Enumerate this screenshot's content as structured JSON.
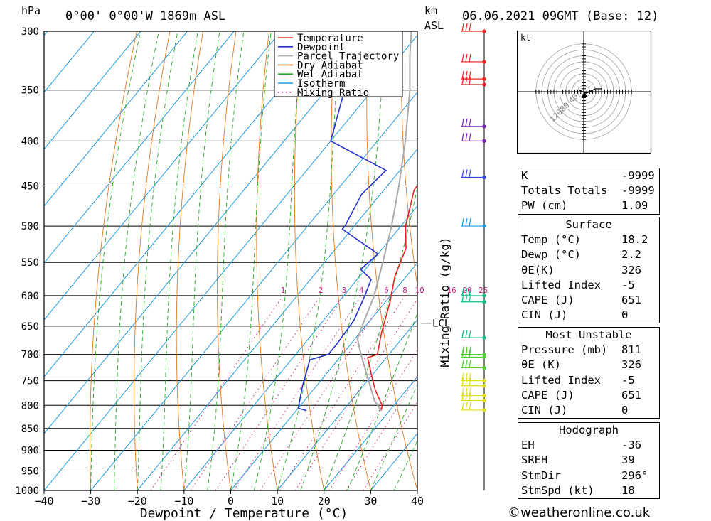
{
  "header": {
    "pressure_unit": "hPa",
    "location": "0°00' 0°00'W 1869m ASL",
    "km_label": "km",
    "asl_label": "ASL",
    "datetime": "06.06.2021 09GMT (Base: 12)"
  },
  "chart_data": {
    "type": "line",
    "subtype": "skew-T log-P diagram",
    "xlabel": "Dewpoint / Temperature (°C)",
    "ylabel": "hPa",
    "xlim": [
      -40,
      40
    ],
    "ylim": [
      1000,
      300
    ],
    "y_scale": "log",
    "x_ticks": [
      "−40",
      "−30",
      "−20",
      "−10",
      "0",
      "10",
      "20",
      "30",
      "40"
    ],
    "pressure_levels": [
      300,
      350,
      400,
      450,
      500,
      550,
      600,
      650,
      700,
      750,
      800,
      850,
      900,
      950,
      1000
    ],
    "mixing_ratio_axis_label": "Mixing Ratio (g/kg)",
    "mixing_ratio_labels": [
      "1",
      "2",
      "3",
      "4",
      "6",
      "8",
      "10",
      "16",
      "20",
      "25"
    ],
    "lcl_label": "LCL",
    "lcl_pressure": 645,
    "legend": [
      "Temperature",
      "Dewpoint",
      "Parcel Trajectory",
      "Dry Adiabat",
      "Wet Adiabat",
      "Isotherm",
      "Mixing Ratio"
    ],
    "series": [
      {
        "name": "Temperature",
        "color": "#ee2222",
        "points": [
          [
            811,
            18.2
          ],
          [
            800,
            17.5
          ],
          [
            770,
            13.5
          ],
          [
            740,
            10
          ],
          [
            706,
            6
          ],
          [
            700,
            7.5
          ],
          [
            660,
            4.5
          ],
          [
            610,
            1
          ],
          [
            570,
            -2.5
          ],
          [
            530,
            -5
          ],
          [
            500,
            -9
          ],
          [
            455,
            -13.5
          ],
          [
            430,
            -14
          ],
          [
            400,
            -20
          ],
          [
            350,
            -27
          ],
          [
            320,
            -32
          ],
          [
            305,
            -33
          ],
          [
            300,
            -33
          ]
        ]
      },
      {
        "name": "Dewpoint",
        "color": "#2233cc",
        "points": [
          [
            811,
            2.2
          ],
          [
            806,
            0
          ],
          [
            760,
            -3
          ],
          [
            710,
            -6
          ],
          [
            700,
            -3
          ],
          [
            680,
            -3
          ],
          [
            640,
            -3.5
          ],
          [
            600,
            -5.5
          ],
          [
            575,
            -7
          ],
          [
            560,
            -11
          ],
          [
            538,
            -10
          ],
          [
            504,
            -22
          ],
          [
            500,
            -22
          ],
          [
            460,
            -24
          ],
          [
            432,
            -23
          ],
          [
            400,
            -40
          ],
          [
            350,
            -46
          ],
          [
            330,
            -48
          ],
          [
            320,
            -47
          ],
          [
            300,
            -48
          ]
        ]
      },
      {
        "name": "Parcel Trajectory",
        "color": "#aaaaaa",
        "points": [
          [
            811,
            18.2
          ],
          [
            790,
            15
          ],
          [
            700,
            4
          ],
          [
            672,
            0.5
          ],
          [
            645,
            -1
          ],
          [
            600,
            -3.5
          ],
          [
            550,
            -7.5
          ],
          [
            500,
            -12
          ],
          [
            450,
            -17.5
          ],
          [
            400,
            -24
          ],
          [
            350,
            -32
          ],
          [
            320,
            -38
          ],
          [
            300,
            -42
          ]
        ]
      }
    ],
    "wind_barb_levels": [
      300,
      325,
      340,
      345,
      385,
      400,
      440,
      500,
      600,
      610,
      670,
      700,
      705,
      725,
      750,
      760,
      780,
      790,
      810
    ]
  },
  "hodograph": {
    "unit": "kt",
    "rings": [
      "40",
      "80",
      "120"
    ]
  },
  "indices": {
    "k_label": "K",
    "k": "-9999",
    "tt_label": "Totals Totals",
    "tt": "-9999",
    "pw_label": "PW (cm)",
    "pw": "1.09"
  },
  "surface": {
    "title": "Surface",
    "rows": [
      {
        "label": "Temp (°C)",
        "value": "18.2"
      },
      {
        "label": "Dewp (°C)",
        "value": "2.2"
      },
      {
        "label": "θE(K)",
        "value": "326"
      },
      {
        "label": "Lifted Index",
        "value": "-5"
      },
      {
        "label": "CAPE (J)",
        "value": "651"
      },
      {
        "label": "CIN (J)",
        "value": "0"
      }
    ]
  },
  "most_unstable": {
    "title": "Most Unstable",
    "rows": [
      {
        "label": "Pressure (mb)",
        "value": "811"
      },
      {
        "label": "θE (K)",
        "value": "326"
      },
      {
        "label": "Lifted Index",
        "value": "-5"
      },
      {
        "label": "CAPE (J)",
        "value": "651"
      },
      {
        "label": "CIN (J)",
        "value": "0"
      }
    ]
  },
  "hodo_stats": {
    "title": "Hodograph",
    "rows": [
      {
        "label": "EH",
        "value": "-36"
      },
      {
        "label": "SREH",
        "value": "39"
      },
      {
        "label": "StmDir",
        "value": "296°"
      },
      {
        "label": "StmSpd (kt)",
        "value": "18"
      }
    ]
  },
  "credit": "©weatheronline.co.uk"
}
